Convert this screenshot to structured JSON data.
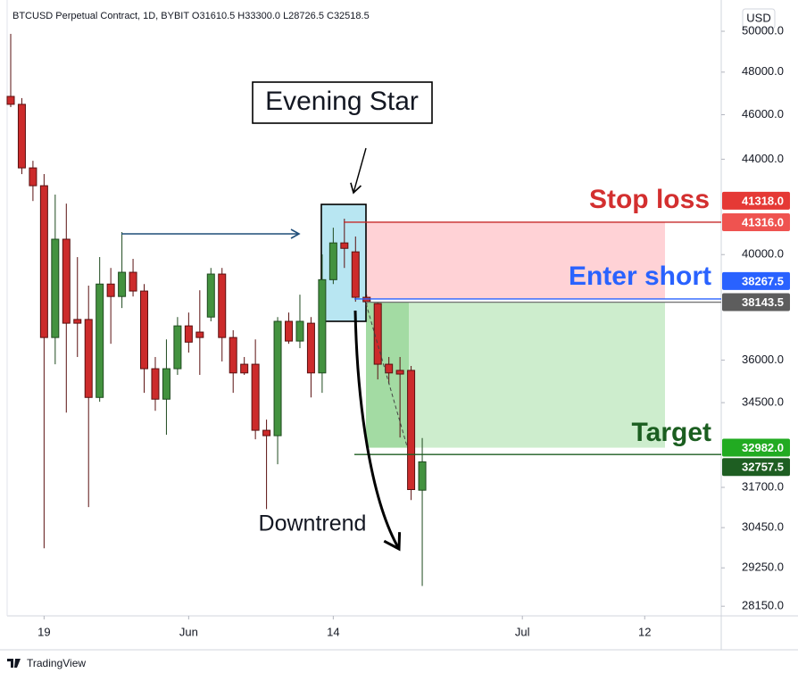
{
  "chart_data": {
    "type": "candlestick",
    "title": "BTCUSD Perpetual Contract, 1D, BYBIT  O31610.5  H33300.0  L28726.5  C32518.5",
    "currency": "USD",
    "brand": "TradingView",
    "log_scale": true,
    "grid": false,
    "up_color": "#43923f",
    "down_color": "#cc2b2b",
    "x": [
      0,
      1,
      2,
      3,
      4,
      5,
      6,
      7,
      8,
      9,
      10,
      11,
      12,
      13,
      14,
      15,
      16,
      17,
      18,
      19,
      20,
      21,
      22,
      23,
      24,
      25,
      26,
      27,
      28,
      29,
      30,
      31,
      32,
      33,
      34,
      35,
      36,
      37
    ],
    "open": [
      46850,
      46480,
      43620,
      42850,
      36820,
      40620,
      37490,
      37490,
      34680,
      38840,
      38360,
      39300,
      38570,
      35690,
      34620,
      35690,
      37250,
      37020,
      37580,
      39230,
      36820,
      35850,
      35850,
      33560,
      33380,
      37420,
      36690,
      37350,
      35540,
      39010,
      40470,
      40110,
      38330,
      38090,
      35850,
      35630,
      35630,
      31610.5
    ],
    "high": [
      49870,
      46770,
      43930,
      43350,
      42470,
      42090,
      39900,
      38780,
      39900,
      39470,
      40910,
      39830,
      38840,
      36110,
      36750,
      37580,
      37750,
      38600,
      39470,
      39470,
      37090,
      36110,
      36750,
      33920,
      37580,
      37750,
      38430,
      37580,
      40010,
      41090,
      41460,
      40730,
      38430,
      38160,
      36110,
      36110,
      35790,
      33300
    ],
    "low": [
      46350,
      43350,
      42200,
      29830,
      35850,
      34160,
      36110,
      31080,
      34530,
      36590,
      37920,
      38360,
      34840,
      34220,
      33410,
      35470,
      36270,
      35470,
      37420,
      35950,
      34840,
      35470,
      33260,
      31020,
      32440,
      36590,
      36430,
      34680,
      34840,
      38840,
      39470,
      38160,
      37960,
      35310,
      35150,
      33320,
      31300,
      28726.5
    ],
    "close": [
      46480,
      43620,
      42850,
      36820,
      40620,
      37350,
      37350,
      34680,
      38840,
      38360,
      39300,
      38570,
      35690,
      34620,
      35690,
      37250,
      36650,
      36820,
      39230,
      36820,
      35540,
      35540,
      33560,
      33380,
      37420,
      36690,
      37420,
      35540,
      39010,
      40470,
      40250,
      38330,
      38160,
      35850,
      35540,
      35500,
      31630,
      32518.5
    ],
    "xlim": [
      -0.32,
      63.88
    ],
    "xticks": [
      {
        "value": 3,
        "label": "19"
      },
      {
        "value": 16,
        "label": "Jun"
      },
      {
        "value": 29,
        "label": "14"
      },
      {
        "value": 46,
        "label": "Jul"
      },
      {
        "value": 57,
        "label": "12"
      }
    ],
    "ylim": [
      27880,
      51220
    ],
    "yticks": [
      {
        "value": 50000,
        "label": "50000.0"
      },
      {
        "value": 48000,
        "label": "48000.0"
      },
      {
        "value": 46000,
        "label": "46000.0"
      },
      {
        "value": 44000,
        "label": "44000.0"
      },
      {
        "value": 40000,
        "label": "40000.0"
      },
      {
        "value": 36000,
        "label": "36000.0"
      },
      {
        "value": 34500,
        "label": "34500.0"
      },
      {
        "value": 31700,
        "label": "31700.0"
      },
      {
        "value": 30450,
        "label": "30450.0"
      },
      {
        "value": 29250,
        "label": "29250.0"
      },
      {
        "value": 28150,
        "label": "28150.0"
      }
    ],
    "price_labels": {
      "values": [
        41318.0,
        41316.0,
        38267.5,
        38143.5,
        32982.0,
        32757.5
      ],
      "value_labels": [
        "41318.0",
        "41316.0",
        "38267.5",
        "38143.5",
        "32982.0",
        "32757.5"
      ],
      "colors": [
        "#e53935",
        "#ef5350",
        "#2962ff",
        "#5d5d5d",
        "#22ab22",
        "#1e5e22"
      ]
    },
    "annotations": {
      "evening_star": "Evening Star",
      "stop_loss": "Stop loss",
      "enter_short": "Enter short",
      "target": "Target",
      "downtrend": "Downtrend"
    }
  }
}
